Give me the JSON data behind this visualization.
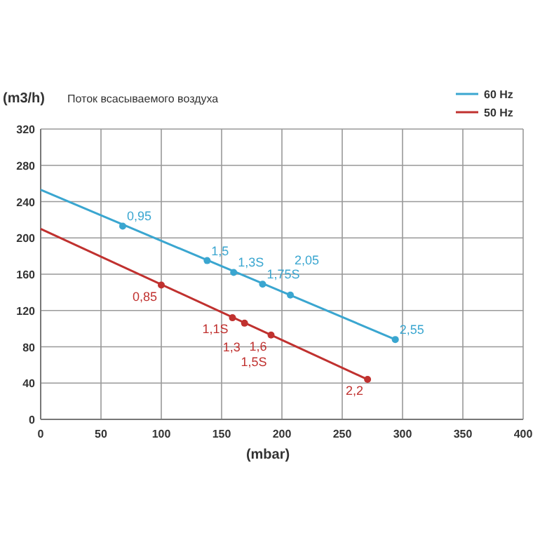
{
  "chart_data": {
    "type": "line",
    "title": "Поток всасываемого воздуха",
    "ylabel": "(m3/h)",
    "xlabel": "(mbar)",
    "series": [
      {
        "name": "60 Hz",
        "color": "#3aa6d0",
        "x": [
          0,
          294
        ],
        "values": [
          253,
          88
        ],
        "marker": "none"
      },
      {
        "name": "50 Hz",
        "color": "#c0312f",
        "x": [
          0,
          271
        ],
        "values": [
          210,
          44
        ],
        "marker": "none"
      },
      {
        "type": "scatter",
        "color": "#3aa6d0",
        "x": [
          68,
          138,
          160,
          184,
          207,
          294
        ],
        "values": [
          213,
          175,
          162,
          149,
          137,
          88
        ],
        "marker": "circle"
      },
      {
        "type": "scatter",
        "color": "#c0312f",
        "x": [
          100,
          159,
          169,
          191,
          271
        ],
        "values": [
          148,
          112,
          106,
          93,
          44
        ],
        "marker": "circle"
      }
    ],
    "annotations": [
      {
        "text": "0,95",
        "x": 68,
        "y": 213
      },
      {
        "text": "1,5",
        "x": 138,
        "y": 175
      },
      {
        "text": "1,3S",
        "x": 160,
        "y": 162
      },
      {
        "text": "1,75S",
        "x": 184,
        "y": 149
      },
      {
        "text": "2,05",
        "x": 207,
        "y": 137
      },
      {
        "text": "2,55",
        "x": 294,
        "y": 88
      },
      {
        "text": "0,85",
        "x": 100,
        "y": 148
      },
      {
        "text": "1,1S",
        "x": 159,
        "y": 112
      },
      {
        "text": "1,3",
        "x": 169,
        "y": 106
      },
      {
        "text": "1,6",
        "x": 191,
        "y": 93
      },
      {
        "text": "1,5S",
        "x": 191,
        "y": 93
      },
      {
        "text": "2,2",
        "x": 271,
        "y": 44
      }
    ],
    "xlim": [
      0,
      400
    ],
    "xticks": [
      0,
      50,
      100,
      150,
      200,
      250,
      300,
      350,
      400
    ],
    "ylim": [
      0,
      320
    ],
    "yticks": [
      0,
      40,
      80,
      120,
      160,
      200,
      240,
      280,
      320
    ],
    "grid": true,
    "legend": "top right"
  }
}
